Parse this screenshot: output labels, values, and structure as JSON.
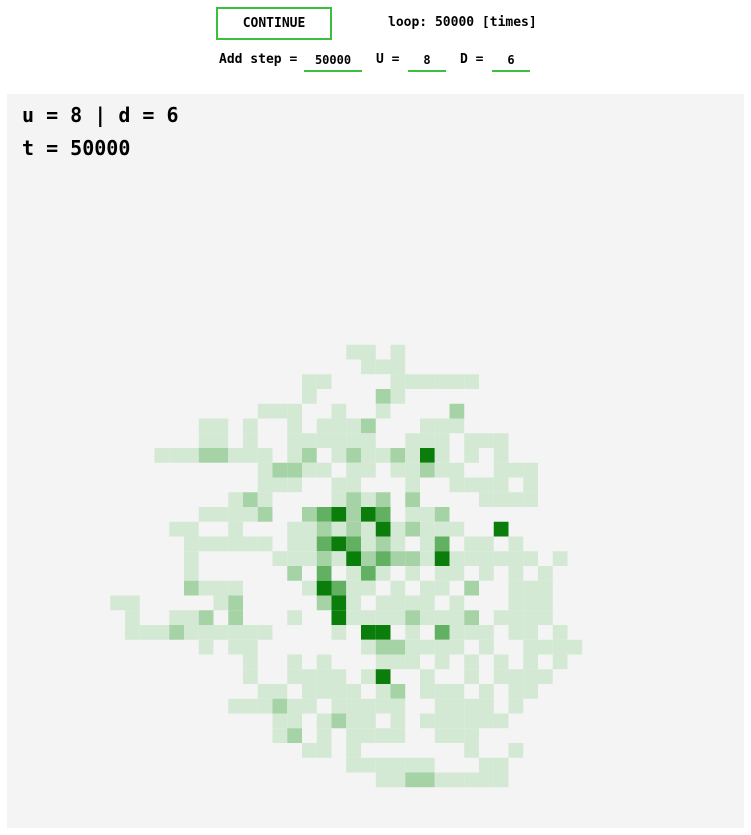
{
  "controls": {
    "continue_label": "CONTINUE",
    "loop_label": "loop: 50000 [times]",
    "add_step_label": "Add step =",
    "add_step_value": "50000",
    "u_label": "U =",
    "u_value": "8",
    "d_label": "D =",
    "d_value": "6"
  },
  "canvas": {
    "ud_text": "u = 8 | d = 6",
    "t_text": "t = 50000",
    "cell_colors": {
      "1": "#d3e9d3",
      "2": "#a6d3a6",
      "3": "#62b062",
      "4": "#0a7d0a"
    },
    "cells": [
      [
        23,
        17,
        1
      ],
      [
        24,
        17,
        1
      ],
      [
        26,
        17,
        1
      ],
      [
        24,
        18,
        1
      ],
      [
        25,
        18,
        1
      ],
      [
        26,
        18,
        1
      ],
      [
        20,
        19,
        1
      ],
      [
        21,
        19,
        1
      ],
      [
        26,
        19,
        1
      ],
      [
        27,
        19,
        1
      ],
      [
        28,
        19,
        1
      ],
      [
        29,
        19,
        1
      ],
      [
        30,
        19,
        1
      ],
      [
        31,
        19,
        1
      ],
      [
        20,
        20,
        1
      ],
      [
        25,
        20,
        2
      ],
      [
        26,
        20,
        1
      ],
      [
        17,
        21,
        1
      ],
      [
        18,
        21,
        1
      ],
      [
        19,
        21,
        1
      ],
      [
        22,
        21,
        1
      ],
      [
        25,
        21,
        1
      ],
      [
        30,
        21,
        2
      ],
      [
        13,
        22,
        1
      ],
      [
        14,
        22,
        1
      ],
      [
        16,
        22,
        1
      ],
      [
        19,
        22,
        1
      ],
      [
        21,
        22,
        1
      ],
      [
        22,
        22,
        1
      ],
      [
        23,
        22,
        1
      ],
      [
        24,
        22,
        2
      ],
      [
        28,
        22,
        1
      ],
      [
        29,
        22,
        1
      ],
      [
        30,
        22,
        1
      ],
      [
        13,
        23,
        1
      ],
      [
        14,
        23,
        1
      ],
      [
        16,
        23,
        1
      ],
      [
        19,
        23,
        1
      ],
      [
        20,
        23,
        1
      ],
      [
        21,
        23,
        1
      ],
      [
        22,
        23,
        1
      ],
      [
        23,
        23,
        1
      ],
      [
        24,
        23,
        1
      ],
      [
        27,
        23,
        1
      ],
      [
        28,
        23,
        1
      ],
      [
        29,
        23,
        1
      ],
      [
        31,
        23,
        1
      ],
      [
        32,
        23,
        1
      ],
      [
        33,
        23,
        1
      ],
      [
        10,
        24,
        1
      ],
      [
        11,
        24,
        1
      ],
      [
        12,
        24,
        1
      ],
      [
        13,
        24,
        2
      ],
      [
        14,
        24,
        2
      ],
      [
        15,
        24,
        1
      ],
      [
        16,
        24,
        1
      ],
      [
        17,
        24,
        1
      ],
      [
        19,
        24,
        1
      ],
      [
        20,
        24,
        2
      ],
      [
        22,
        24,
        1
      ],
      [
        23,
        24,
        2
      ],
      [
        24,
        24,
        1
      ],
      [
        25,
        24,
        1
      ],
      [
        26,
        24,
        2
      ],
      [
        27,
        24,
        1
      ],
      [
        28,
        24,
        4
      ],
      [
        29,
        24,
        1
      ],
      [
        31,
        24,
        1
      ],
      [
        33,
        24,
        1
      ],
      [
        17,
        25,
        1
      ],
      [
        18,
        25,
        2
      ],
      [
        19,
        25,
        2
      ],
      [
        20,
        25,
        1
      ],
      [
        21,
        25,
        1
      ],
      [
        23,
        25,
        1
      ],
      [
        24,
        25,
        1
      ],
      [
        26,
        25,
        1
      ],
      [
        27,
        25,
        1
      ],
      [
        28,
        25,
        2
      ],
      [
        29,
        25,
        1
      ],
      [
        30,
        25,
        1
      ],
      [
        33,
        25,
        1
      ],
      [
        34,
        25,
        1
      ],
      [
        35,
        25,
        1
      ],
      [
        17,
        26,
        1
      ],
      [
        18,
        26,
        1
      ],
      [
        19,
        26,
        1
      ],
      [
        22,
        26,
        1
      ],
      [
        23,
        26,
        1
      ],
      [
        27,
        26,
        1
      ],
      [
        30,
        26,
        1
      ],
      [
        31,
        26,
        1
      ],
      [
        32,
        26,
        1
      ],
      [
        33,
        26,
        1
      ],
      [
        35,
        26,
        1
      ],
      [
        15,
        27,
        1
      ],
      [
        16,
        27,
        2
      ],
      [
        17,
        27,
        1
      ],
      [
        22,
        27,
        1
      ],
      [
        23,
        27,
        2
      ],
      [
        24,
        27,
        1
      ],
      [
        25,
        27,
        2
      ],
      [
        27,
        27,
        2
      ],
      [
        32,
        27,
        1
      ],
      [
        33,
        27,
        1
      ],
      [
        34,
        27,
        1
      ],
      [
        35,
        27,
        1
      ],
      [
        13,
        28,
        1
      ],
      [
        14,
        28,
        1
      ],
      [
        15,
        28,
        1
      ],
      [
        16,
        28,
        1
      ],
      [
        17,
        28,
        2
      ],
      [
        20,
        28,
        2
      ],
      [
        21,
        28,
        3
      ],
      [
        22,
        28,
        4
      ],
      [
        23,
        28,
        2
      ],
      [
        24,
        28,
        4
      ],
      [
        25,
        28,
        3
      ],
      [
        27,
        28,
        1
      ],
      [
        28,
        28,
        1
      ],
      [
        29,
        28,
        2
      ],
      [
        11,
        29,
        1
      ],
      [
        12,
        29,
        1
      ],
      [
        15,
        29,
        1
      ],
      [
        19,
        29,
        1
      ],
      [
        20,
        29,
        1
      ],
      [
        21,
        29,
        2
      ],
      [
        22,
        29,
        1
      ],
      [
        23,
        29,
        2
      ],
      [
        24,
        29,
        1
      ],
      [
        25,
        29,
        4
      ],
      [
        26,
        29,
        1
      ],
      [
        27,
        29,
        2
      ],
      [
        28,
        29,
        1
      ],
      [
        29,
        29,
        1
      ],
      [
        30,
        29,
        1
      ],
      [
        33,
        29,
        4
      ],
      [
        12,
        30,
        1
      ],
      [
        13,
        30,
        1
      ],
      [
        14,
        30,
        1
      ],
      [
        15,
        30,
        1
      ],
      [
        16,
        30,
        1
      ],
      [
        17,
        30,
        1
      ],
      [
        19,
        30,
        1
      ],
      [
        20,
        30,
        1
      ],
      [
        21,
        30,
        3
      ],
      [
        22,
        30,
        4
      ],
      [
        23,
        30,
        3
      ],
      [
        24,
        30,
        1
      ],
      [
        25,
        30,
        2
      ],
      [
        26,
        30,
        1
      ],
      [
        28,
        30,
        1
      ],
      [
        29,
        30,
        3
      ],
      [
        31,
        30,
        1
      ],
      [
        32,
        30,
        1
      ],
      [
        34,
        30,
        1
      ],
      [
        12,
        31,
        1
      ],
      [
        18,
        31,
        1
      ],
      [
        19,
        31,
        1
      ],
      [
        20,
        31,
        1
      ],
      [
        21,
        31,
        2
      ],
      [
        22,
        31,
        1
      ],
      [
        23,
        31,
        4
      ],
      [
        24,
        31,
        2
      ],
      [
        25,
        31,
        3
      ],
      [
        26,
        31,
        2
      ],
      [
        27,
        31,
        2
      ],
      [
        28,
        31,
        1
      ],
      [
        29,
        31,
        4
      ],
      [
        30,
        31,
        1
      ],
      [
        31,
        31,
        1
      ],
      [
        32,
        31,
        1
      ],
      [
        33,
        31,
        1
      ],
      [
        34,
        31,
        1
      ],
      [
        35,
        31,
        1
      ],
      [
        37,
        31,
        1
      ],
      [
        12,
        32,
        1
      ],
      [
        19,
        32,
        2
      ],
      [
        21,
        32,
        3
      ],
      [
        23,
        32,
        1
      ],
      [
        24,
        32,
        3
      ],
      [
        25,
        32,
        1
      ],
      [
        27,
        32,
        1
      ],
      [
        29,
        32,
        1
      ],
      [
        30,
        32,
        1
      ],
      [
        32,
        32,
        1
      ],
      [
        34,
        32,
        1
      ],
      [
        36,
        32,
        1
      ],
      [
        12,
        33,
        2
      ],
      [
        13,
        33,
        1
      ],
      [
        14,
        33,
        1
      ],
      [
        15,
        33,
        1
      ],
      [
        20,
        33,
        1
      ],
      [
        21,
        33,
        4
      ],
      [
        22,
        33,
        3
      ],
      [
        23,
        33,
        1
      ],
      [
        24,
        33,
        1
      ],
      [
        26,
        33,
        1
      ],
      [
        28,
        33,
        1
      ],
      [
        29,
        33,
        1
      ],
      [
        31,
        33,
        2
      ],
      [
        34,
        33,
        1
      ],
      [
        35,
        33,
        1
      ],
      [
        36,
        33,
        1
      ],
      [
        7,
        34,
        1
      ],
      [
        8,
        34,
        1
      ],
      [
        14,
        34,
        1
      ],
      [
        15,
        34,
        2
      ],
      [
        21,
        34,
        2
      ],
      [
        22,
        34,
        4
      ],
      [
        23,
        34,
        1
      ],
      [
        25,
        34,
        1
      ],
      [
        26,
        34,
        1
      ],
      [
        27,
        34,
        1
      ],
      [
        28,
        34,
        1
      ],
      [
        30,
        34,
        1
      ],
      [
        34,
        34,
        1
      ],
      [
        35,
        34,
        1
      ],
      [
        36,
        34,
        1
      ],
      [
        8,
        35,
        1
      ],
      [
        11,
        35,
        1
      ],
      [
        12,
        35,
        1
      ],
      [
        13,
        35,
        2
      ],
      [
        15,
        35,
        2
      ],
      [
        19,
        35,
        1
      ],
      [
        22,
        35,
        4
      ],
      [
        23,
        35,
        1
      ],
      [
        24,
        35,
        1
      ],
      [
        25,
        35,
        1
      ],
      [
        26,
        35,
        1
      ],
      [
        27,
        35,
        2
      ],
      [
        28,
        35,
        1
      ],
      [
        29,
        35,
        1
      ],
      [
        30,
        35,
        1
      ],
      [
        31,
        35,
        2
      ],
      [
        33,
        35,
        1
      ],
      [
        34,
        35,
        1
      ],
      [
        35,
        35,
        1
      ],
      [
        36,
        35,
        1
      ],
      [
        8,
        36,
        1
      ],
      [
        9,
        36,
        1
      ],
      [
        10,
        36,
        1
      ],
      [
        11,
        36,
        2
      ],
      [
        12,
        36,
        1
      ],
      [
        13,
        36,
        1
      ],
      [
        14,
        36,
        1
      ],
      [
        15,
        36,
        1
      ],
      [
        16,
        36,
        1
      ],
      [
        17,
        36,
        1
      ],
      [
        22,
        36,
        1
      ],
      [
        24,
        36,
        4
      ],
      [
        25,
        36,
        4
      ],
      [
        27,
        36,
        1
      ],
      [
        29,
        36,
        3
      ],
      [
        30,
        36,
        1
      ],
      [
        31,
        36,
        1
      ],
      [
        32,
        36,
        1
      ],
      [
        34,
        36,
        1
      ],
      [
        35,
        36,
        1
      ],
      [
        37,
        36,
        1
      ],
      [
        13,
        37,
        1
      ],
      [
        15,
        37,
        1
      ],
      [
        16,
        37,
        1
      ],
      [
        24,
        37,
        1
      ],
      [
        25,
        37,
        2
      ],
      [
        26,
        37,
        2
      ],
      [
        27,
        37,
        1
      ],
      [
        28,
        37,
        1
      ],
      [
        29,
        37,
        1
      ],
      [
        30,
        37,
        1
      ],
      [
        32,
        37,
        1
      ],
      [
        35,
        37,
        1
      ],
      [
        36,
        37,
        1
      ],
      [
        37,
        37,
        1
      ],
      [
        38,
        37,
        1
      ],
      [
        16,
        38,
        1
      ],
      [
        19,
        38,
        1
      ],
      [
        21,
        38,
        1
      ],
      [
        25,
        38,
        1
      ],
      [
        26,
        38,
        1
      ],
      [
        27,
        38,
        1
      ],
      [
        29,
        38,
        1
      ],
      [
        31,
        38,
        1
      ],
      [
        33,
        38,
        1
      ],
      [
        35,
        38,
        1
      ],
      [
        37,
        38,
        1
      ],
      [
        16,
        39,
        1
      ],
      [
        19,
        39,
        1
      ],
      [
        20,
        39,
        1
      ],
      [
        21,
        39,
        1
      ],
      [
        22,
        39,
        1
      ],
      [
        24,
        39,
        1
      ],
      [
        25,
        39,
        4
      ],
      [
        28,
        39,
        1
      ],
      [
        31,
        39,
        1
      ],
      [
        33,
        39,
        1
      ],
      [
        34,
        39,
        1
      ],
      [
        35,
        39,
        1
      ],
      [
        36,
        39,
        1
      ],
      [
        17,
        40,
        1
      ],
      [
        18,
        40,
        1
      ],
      [
        20,
        40,
        1
      ],
      [
        21,
        40,
        1
      ],
      [
        22,
        40,
        1
      ],
      [
        23,
        40,
        1
      ],
      [
        25,
        40,
        1
      ],
      [
        26,
        40,
        2
      ],
      [
        28,
        40,
        1
      ],
      [
        29,
        40,
        1
      ],
      [
        30,
        40,
        1
      ],
      [
        32,
        40,
        1
      ],
      [
        34,
        40,
        1
      ],
      [
        35,
        40,
        1
      ],
      [
        15,
        41,
        1
      ],
      [
        16,
        41,
        1
      ],
      [
        17,
        41,
        1
      ],
      [
        18,
        41,
        2
      ],
      [
        19,
        41,
        1
      ],
      [
        20,
        41,
        1
      ],
      [
        22,
        41,
        1
      ],
      [
        23,
        41,
        1
      ],
      [
        24,
        41,
        1
      ],
      [
        25,
        41,
        1
      ],
      [
        26,
        41,
        1
      ],
      [
        29,
        41,
        1
      ],
      [
        30,
        41,
        1
      ],
      [
        31,
        41,
        1
      ],
      [
        32,
        41,
        1
      ],
      [
        34,
        41,
        1
      ],
      [
        18,
        42,
        1
      ],
      [
        19,
        42,
        1
      ],
      [
        21,
        42,
        1
      ],
      [
        22,
        42,
        2
      ],
      [
        23,
        42,
        1
      ],
      [
        24,
        42,
        1
      ],
      [
        26,
        42,
        1
      ],
      [
        28,
        42,
        1
      ],
      [
        29,
        42,
        1
      ],
      [
        30,
        42,
        1
      ],
      [
        31,
        42,
        1
      ],
      [
        32,
        42,
        1
      ],
      [
        33,
        42,
        1
      ],
      [
        18,
        43,
        1
      ],
      [
        19,
        43,
        2
      ],
      [
        21,
        43,
        1
      ],
      [
        23,
        43,
        1
      ],
      [
        24,
        43,
        1
      ],
      [
        25,
        43,
        1
      ],
      [
        26,
        43,
        1
      ],
      [
        29,
        43,
        1
      ],
      [
        30,
        43,
        1
      ],
      [
        31,
        43,
        1
      ],
      [
        20,
        44,
        1
      ],
      [
        21,
        44,
        1
      ],
      [
        23,
        44,
        1
      ],
      [
        31,
        44,
        1
      ],
      [
        34,
        44,
        1
      ],
      [
        23,
        45,
        1
      ],
      [
        24,
        45,
        1
      ],
      [
        25,
        45,
        1
      ],
      [
        26,
        45,
        1
      ],
      [
        27,
        45,
        1
      ],
      [
        28,
        45,
        1
      ],
      [
        32,
        45,
        1
      ],
      [
        33,
        45,
        1
      ],
      [
        25,
        46,
        1
      ],
      [
        26,
        46,
        1
      ],
      [
        27,
        46,
        2
      ],
      [
        28,
        46,
        2
      ],
      [
        29,
        46,
        1
      ],
      [
        30,
        46,
        1
      ],
      [
        31,
        46,
        1
      ],
      [
        32,
        46,
        1
      ],
      [
        33,
        46,
        1
      ]
    ]
  }
}
